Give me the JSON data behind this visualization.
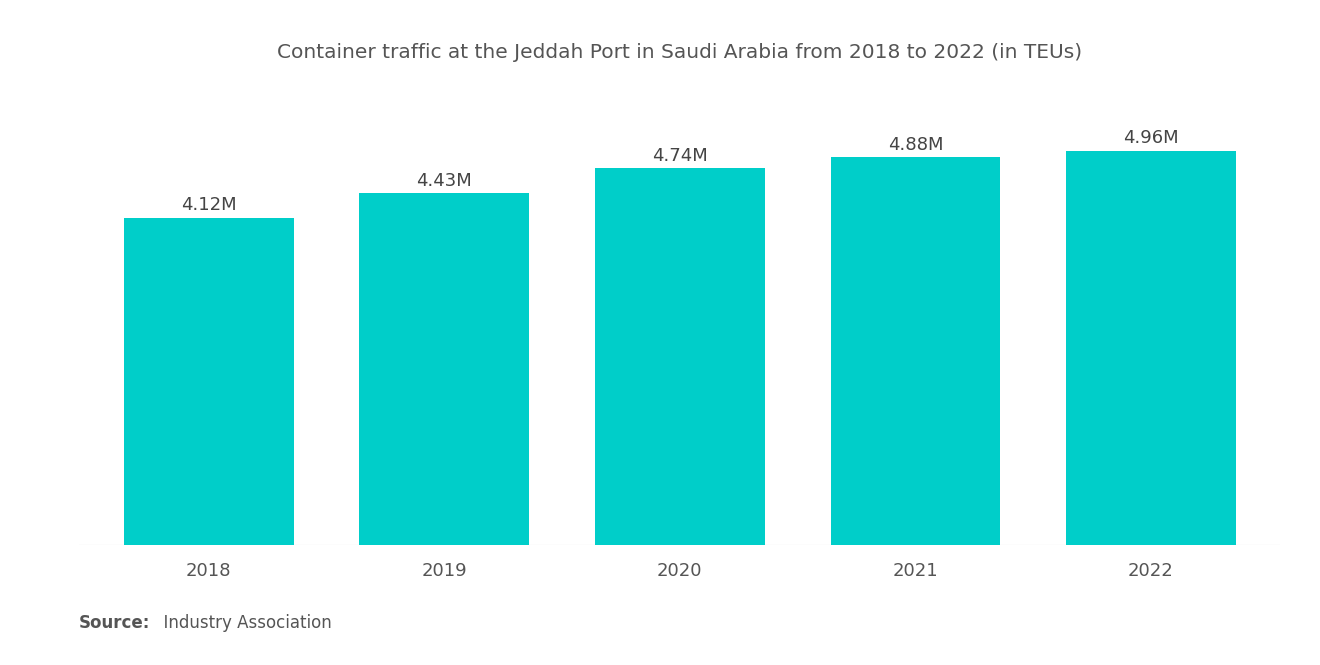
{
  "title": "Container traffic at the Jeddah Port in Saudi Arabia from 2018 to 2022 (in TEUs)",
  "categories": [
    "2018",
    "2019",
    "2020",
    "2021",
    "2022"
  ],
  "values": [
    4.12,
    4.43,
    4.74,
    4.88,
    4.96
  ],
  "labels": [
    "4.12M",
    "4.43M",
    "4.74M",
    "4.88M",
    "4.96M"
  ],
  "bar_color": "#00CEC9",
  "background_color": "#ffffff",
  "title_color": "#555555",
  "label_color": "#444444",
  "tick_color": "#555555",
  "source_bold": "Source:",
  "source_rest": "  Industry Association",
  "ylim": [
    0,
    5.6
  ],
  "title_fontsize": 14.5,
  "label_fontsize": 13,
  "tick_fontsize": 13,
  "source_fontsize": 12,
  "bar_width": 0.72
}
